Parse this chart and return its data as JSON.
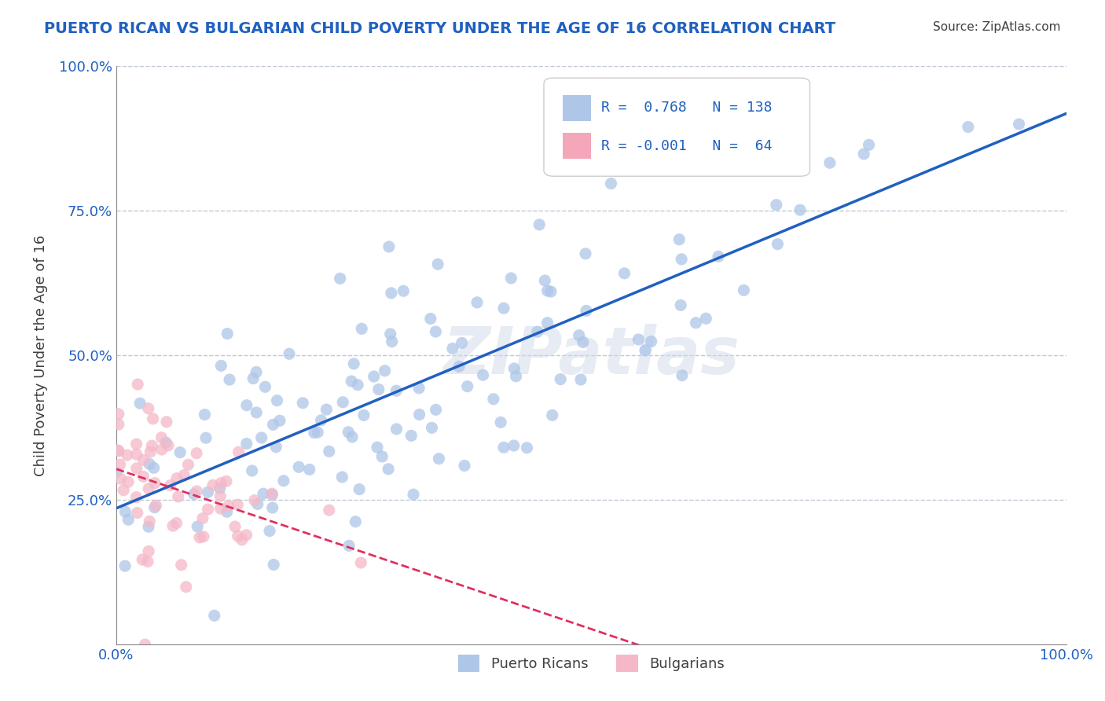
{
  "title": "PUERTO RICAN VS BULGARIAN CHILD POVERTY UNDER THE AGE OF 16 CORRELATION CHART",
  "source": "Source: ZipAtlas.com",
  "xlabel": "",
  "ylabel": "Child Poverty Under the Age of 16",
  "watermark": "ZIPatlas",
  "legend_entries": [
    {
      "label": "Puerto Ricans",
      "color": "#aec6e8",
      "R": 0.768,
      "N": 138
    },
    {
      "label": "Bulgarians",
      "color": "#f4a7b9",
      "R": -0.001,
      "N": 64
    }
  ],
  "pr_scatter_seed": 42,
  "bg_scatter_seed": 7,
  "pr_R": 0.768,
  "pr_N": 138,
  "bg_R": -0.001,
  "bg_N": 64,
  "pr_color": "#aec6e8",
  "bg_color": "#f4b8c8",
  "pr_line_color": "#2060c0",
  "bg_line_color": "#e03060",
  "title_color": "#2060c0",
  "axis_label_color": "#404040",
  "tick_label_color": "#2060c0",
  "source_color": "#404040",
  "watermark_color": "#d0d8e8",
  "grid_color": "#c0c8d8",
  "background_color": "#ffffff",
  "xlim": [
    0,
    1
  ],
  "ylim": [
    0,
    1
  ]
}
